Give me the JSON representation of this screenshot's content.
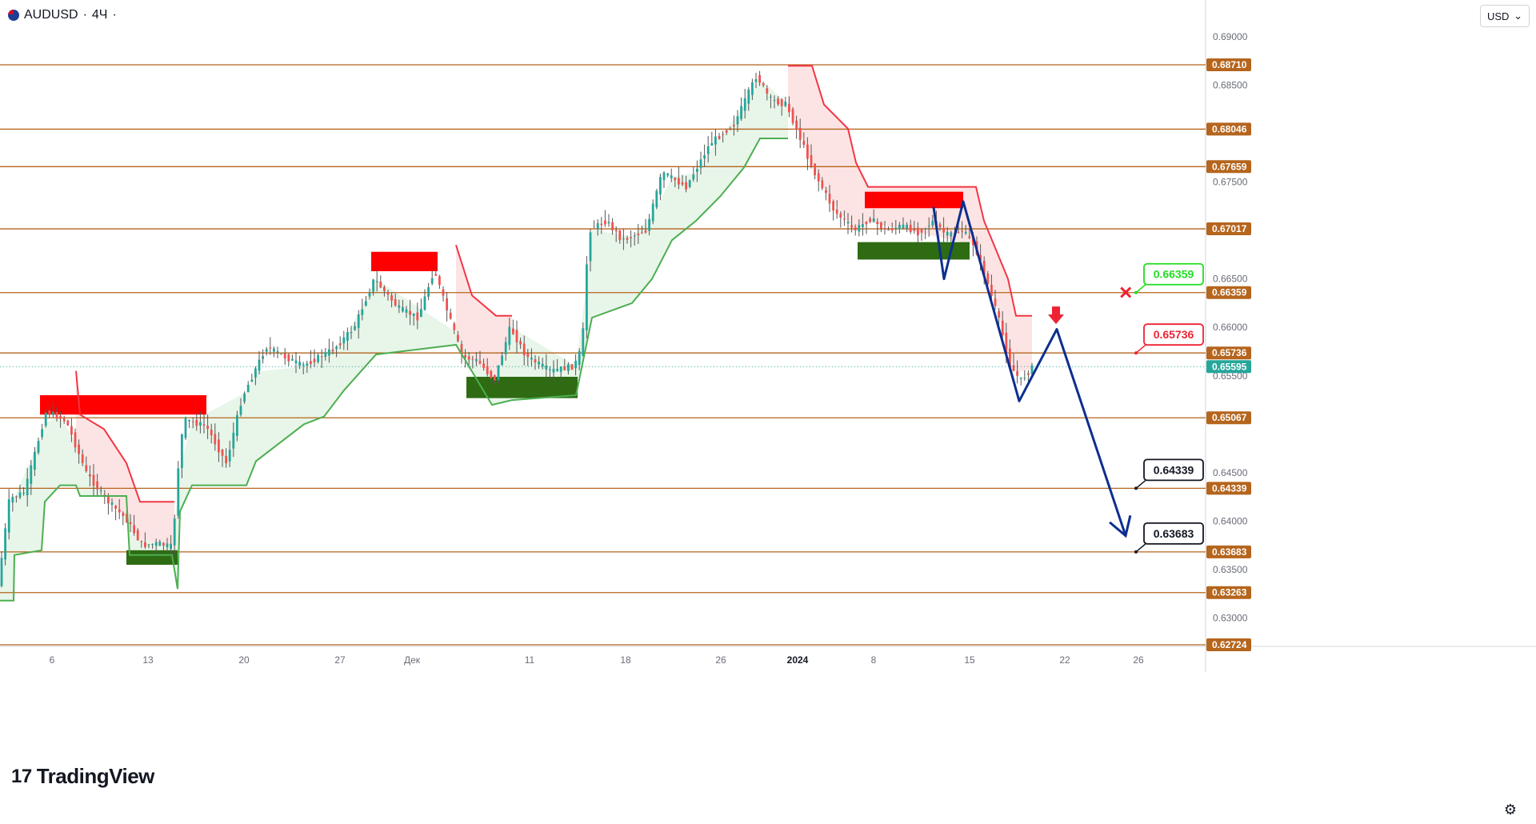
{
  "header": {
    "symbol": "AUDUSD",
    "separator": "·",
    "interval": "4Ч",
    "dot": "·"
  },
  "currency_selector": {
    "value": "USD",
    "arrow": "⌄"
  },
  "logo": {
    "text": "TradingView",
    "mark": "17"
  },
  "colors": {
    "level_line": "#b5651d",
    "up_candle": "#26a69a",
    "down_candle": "#ef5350",
    "candle_wick": "#555555",
    "supertrend_up": "#4caf50",
    "supertrend_down": "#f23645",
    "fill_up": "#e8f5e9",
    "fill_down": "#fde4e4",
    "supply_zone": "#ff0000",
    "demand_zone": "#2e6b12",
    "projection": "#0d2f8f",
    "target_green": "#22dd22",
    "target_red": "#ee2233",
    "target_black": "#131722",
    "current_price": "#26a69a"
  },
  "chart_data": {
    "type": "line",
    "title": "AUDUSD · 4Ч",
    "x_axis": {
      "ticks": [
        "6",
        "13",
        "20",
        "27",
        "Дек",
        "11",
        "18",
        "26",
        "2024",
        "8",
        "15",
        "22",
        "26"
      ],
      "bold_ticks": [
        "2024"
      ]
    },
    "y_axis": {
      "range": [
        0.627,
        0.6912
      ],
      "ticks": [
        "0.69000",
        "0.68500",
        "0.67500",
        "0.66500",
        "0.66000",
        "0.65500",
        "0.64500",
        "0.64000",
        "0.63500",
        "0.63000"
      ]
    },
    "price_levels": [
      "0.68710",
      "0.68046",
      "0.67659",
      "0.67017",
      "0.66359",
      "0.65736",
      "0.65067",
      "0.64339",
      "0.63683",
      "0.63263",
      "0.62724"
    ],
    "current_price": "0.65595",
    "price_path": [
      [
        0,
        0.6335
      ],
      [
        14,
        0.6423
      ],
      [
        33,
        0.643
      ],
      [
        60,
        0.6514
      ],
      [
        85,
        0.6503
      ],
      [
        110,
        0.645
      ],
      [
        135,
        0.6422
      ],
      [
        160,
        0.6402
      ],
      [
        180,
        0.6375
      ],
      [
        200,
        0.6377
      ],
      [
        218,
        0.6373
      ],
      [
        224,
        0.6448
      ],
      [
        232,
        0.6505
      ],
      [
        260,
        0.6498
      ],
      [
        285,
        0.646
      ],
      [
        305,
        0.6528
      ],
      [
        335,
        0.658
      ],
      [
        380,
        0.656
      ],
      [
        420,
        0.6578
      ],
      [
        445,
        0.66
      ],
      [
        470,
        0.665
      ],
      [
        500,
        0.662
      ],
      [
        525,
        0.661
      ],
      [
        545,
        0.666
      ],
      [
        560,
        0.662
      ],
      [
        580,
        0.657
      ],
      [
        600,
        0.6565
      ],
      [
        620,
        0.6545
      ],
      [
        640,
        0.66
      ],
      [
        660,
        0.657
      ],
      [
        690,
        0.6555
      ],
      [
        720,
        0.656
      ],
      [
        730,
        0.658
      ],
      [
        738,
        0.67
      ],
      [
        760,
        0.671
      ],
      [
        780,
        0.669
      ],
      [
        810,
        0.67
      ],
      [
        830,
        0.676
      ],
      [
        860,
        0.6745
      ],
      [
        890,
        0.679
      ],
      [
        920,
        0.681
      ],
      [
        948,
        0.686
      ],
      [
        965,
        0.6835
      ],
      [
        985,
        0.683
      ],
      [
        1000,
        0.68
      ],
      [
        1020,
        0.676
      ],
      [
        1045,
        0.672
      ],
      [
        1070,
        0.67
      ],
      [
        1090,
        0.6712
      ],
      [
        1110,
        0.67
      ],
      [
        1130,
        0.6705
      ],
      [
        1150,
        0.6698
      ],
      [
        1170,
        0.671
      ],
      [
        1185,
        0.6695
      ],
      [
        1205,
        0.67
      ],
      [
        1220,
        0.6685
      ],
      [
        1235,
        0.665
      ],
      [
        1250,
        0.661
      ],
      [
        1265,
        0.656
      ],
      [
        1278,
        0.6545
      ],
      [
        1292,
        0.6558
      ]
    ],
    "supertrend_up": [
      [
        0,
        0.6318
      ],
      [
        17,
        0.6318
      ],
      [
        18,
        0.6365
      ],
      [
        52,
        0.637
      ],
      [
        56,
        0.642
      ],
      [
        75,
        0.6437
      ],
      [
        95,
        0.6437
      ],
      [
        100,
        0.6426
      ],
      [
        158,
        0.6426
      ],
      [
        162,
        0.6365
      ],
      [
        215,
        0.6365
      ],
      [
        222,
        0.633
      ],
      [
        225,
        0.641
      ],
      [
        240,
        0.6437
      ],
      [
        308,
        0.6437
      ],
      [
        320,
        0.6462
      ],
      [
        380,
        0.65
      ],
      [
        405,
        0.6508
      ],
      [
        430,
        0.6535
      ],
      [
        470,
        0.6572
      ],
      [
        570,
        0.6582
      ],
      [
        615,
        0.652
      ],
      [
        640,
        0.6525
      ],
      [
        720,
        0.653
      ],
      [
        735,
        0.659
      ],
      [
        740,
        0.661
      ],
      [
        790,
        0.6625
      ],
      [
        815,
        0.665
      ],
      [
        840,
        0.669
      ],
      [
        870,
        0.671
      ],
      [
        900,
        0.6735
      ],
      [
        930,
        0.6765
      ],
      [
        950,
        0.6795
      ],
      [
        985,
        0.6795
      ]
    ],
    "supertrend_down": [
      [
        95,
        0.6555
      ],
      [
        100,
        0.651
      ],
      [
        130,
        0.6495
      ],
      [
        158,
        0.646
      ],
      [
        175,
        0.642
      ],
      [
        218,
        0.642
      ],
      [
        570,
        0.6685
      ],
      [
        590,
        0.6633
      ],
      [
        620,
        0.6612
      ],
      [
        640,
        0.6612
      ],
      [
        985,
        0.687
      ],
      [
        1015,
        0.687
      ],
      [
        1030,
        0.683
      ],
      [
        1060,
        0.6805
      ],
      [
        1070,
        0.677
      ],
      [
        1085,
        0.6745
      ],
      [
        1220,
        0.6745
      ],
      [
        1230,
        0.671
      ],
      [
        1245,
        0.668
      ],
      [
        1260,
        0.665
      ],
      [
        1270,
        0.6612
      ],
      [
        1290,
        0.6612
      ]
    ],
    "supply_zones": [
      {
        "x0": 50,
        "x1": 258,
        "y0": 0.651,
        "y1": 0.653
      },
      {
        "x0": 464,
        "x1": 547,
        "y0": 0.6658,
        "y1": 0.6678
      },
      {
        "x0": 1081,
        "x1": 1204,
        "y0": 0.6723,
        "y1": 0.674
      }
    ],
    "demand_zones": [
      {
        "x0": 158,
        "x1": 222,
        "y0": 0.6355,
        "y1": 0.637
      },
      {
        "x0": 583,
        "x1": 722,
        "y0": 0.6527,
        "y1": 0.6549
      },
      {
        "x0": 1072,
        "x1": 1212,
        "y0": 0.667,
        "y1": 0.6688
      }
    ],
    "projection_path": [
      [
        1167,
        0.6724
      ],
      [
        1180,
        0.665
      ],
      [
        1204,
        0.673
      ],
      [
        1274,
        0.6524
      ],
      [
        1321,
        0.6598
      ],
      [
        1407,
        0.6385
      ]
    ],
    "targets": [
      {
        "label": "0.66359",
        "color_key": "target_green"
      },
      {
        "label": "0.65736",
        "color_key": "target_red"
      },
      {
        "label": "0.64339",
        "color_key": "target_black"
      },
      {
        "label": "0.63683",
        "color_key": "target_black"
      }
    ],
    "invalid_marker": "✕",
    "sell_arrow": "down-arrow"
  }
}
